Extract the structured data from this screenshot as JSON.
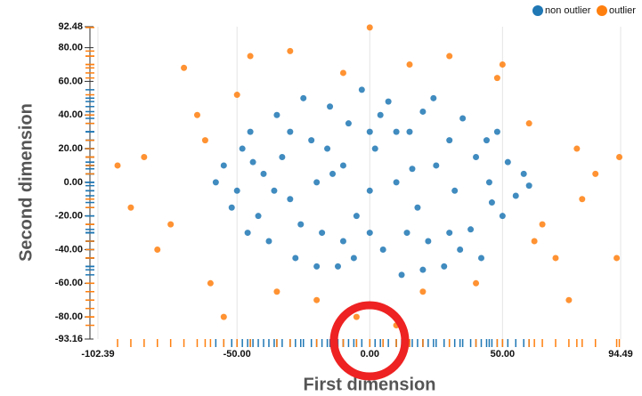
{
  "chart_data": {
    "type": "scatter",
    "xlabel": "First dimension",
    "ylabel": "Second dimension",
    "xlim": [
      -102.39,
      94.49
    ],
    "ylim": [
      -93.16,
      92.48
    ],
    "xticks": [
      -102.39,
      {
        "value": -50,
        "label": "-50.00"
      },
      {
        "value": 0,
        "label": "0.00"
      },
      {
        "value": 50,
        "label": "50.00"
      },
      94.49
    ],
    "yticks": [
      92.48,
      {
        "value": 80,
        "label": "80.00"
      },
      {
        "value": 60,
        "label": "60.00"
      },
      {
        "value": 40,
        "label": "40.00"
      },
      {
        "value": 20,
        "label": "20.00"
      },
      {
        "value": 0,
        "label": "0.00"
      },
      {
        "value": -20,
        "label": "-20.00"
      },
      {
        "value": -40,
        "label": "-40.00"
      },
      {
        "value": -60,
        "label": "-60.00"
      },
      {
        "value": -80,
        "label": "-80.00"
      },
      -93.16
    ],
    "grid": "x",
    "legend": "top-right",
    "series": [
      {
        "name": "non outlier",
        "color": "#1f77b4",
        "x": [
          -55,
          -50,
          -48,
          -45,
          -42,
          -40,
          -38,
          -35,
          -33,
          -30,
          -28,
          -25,
          -22,
          -20,
          -18,
          -15,
          -12,
          -10,
          -8,
          -5,
          -3,
          0,
          2,
          5,
          7,
          10,
          12,
          15,
          18,
          20,
          22,
          25,
          28,
          30,
          32,
          35,
          38,
          40,
          42,
          45,
          48,
          50,
          52,
          55,
          58,
          -52,
          -46,
          -36,
          -26,
          -16,
          -6,
          4,
          14,
          24,
          34,
          44,
          -30,
          -10,
          10,
          30,
          0,
          0,
          -20,
          20,
          -44,
          46,
          -58,
          60,
          -14,
          16
        ],
        "values": [
          10,
          -5,
          20,
          30,
          -20,
          5,
          -35,
          40,
          15,
          -10,
          -45,
          50,
          25,
          0,
          -30,
          45,
          -50,
          10,
          35,
          -20,
          55,
          -5,
          20,
          -40,
          48,
          0,
          -55,
          30,
          -15,
          42,
          -35,
          10,
          -50,
          25,
          -5,
          38,
          -28,
          15,
          -45,
          0,
          30,
          -20,
          12,
          -8,
          5,
          -15,
          -30,
          -5,
          -25,
          20,
          -45,
          40,
          -30,
          50,
          -40,
          25,
          30,
          -35,
          30,
          -30,
          30,
          -30,
          -50,
          -52,
          12,
          -12,
          0,
          -2,
          5,
          8
        ]
      },
      {
        "name": "outlier",
        "color": "#ff7f0e",
        "x": [
          -85,
          -75,
          -70,
          -65,
          -80,
          -60,
          -55,
          -45,
          -35,
          -30,
          -20,
          -10,
          0,
          5,
          15,
          20,
          30,
          40,
          50,
          60,
          65,
          70,
          75,
          78,
          80,
          85,
          93,
          94,
          -95,
          -90,
          -62,
          62,
          -50,
          48,
          -5,
          10
        ],
        "values": [
          15,
          -25,
          68,
          40,
          -40,
          -60,
          -80,
          75,
          -65,
          78,
          -70,
          65,
          92,
          -75,
          70,
          -65,
          75,
          -60,
          70,
          35,
          -25,
          -45,
          -70,
          20,
          -10,
          5,
          -45,
          15,
          10,
          -15,
          25,
          -35,
          52,
          62,
          -80,
          -85
        ]
      }
    ]
  }
}
